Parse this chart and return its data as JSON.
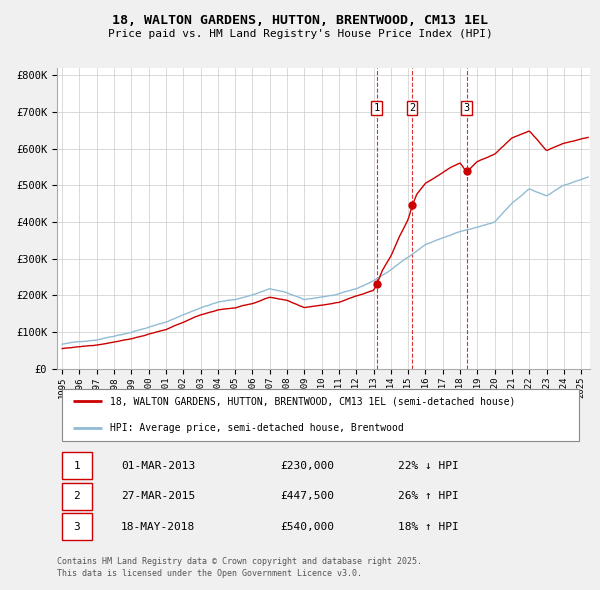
{
  "title": "18, WALTON GARDENS, HUTTON, BRENTWOOD, CM13 1EL",
  "subtitle": "Price paid vs. HM Land Registry's House Price Index (HPI)",
  "background_color": "#f0f0f0",
  "plot_bg_color": "#ffffff",
  "legend_line1": "18, WALTON GARDENS, HUTTON, BRENTWOOD, CM13 1EL (semi-detached house)",
  "legend_line2": "HPI: Average price, semi-detached house, Brentwood",
  "sale_color": "#cc0000",
  "hpi_color": "#92bcd4",
  "transactions": [
    {
      "label": "1",
      "date": "01-MAR-2013",
      "price": 230000,
      "hpi_rel": "22% ↓ HPI",
      "year": 2013.17
    },
    {
      "label": "2",
      "date": "27-MAR-2015",
      "price": 447500,
      "hpi_rel": "26% ↑ HPI",
      "year": 2015.23
    },
    {
      "label": "3",
      "date": "18-MAY-2018",
      "price": 540000,
      "hpi_rel": "18% ↑ HPI",
      "year": 2018.38
    }
  ],
  "footer_line1": "Contains HM Land Registry data © Crown copyright and database right 2025.",
  "footer_line2": "This data is licensed under the Open Government Licence v3.0.",
  "ylim": [
    0,
    820000
  ],
  "xlim_start": 1994.7,
  "xlim_end": 2025.5,
  "yticks": [
    0,
    100000,
    200000,
    300000,
    400000,
    500000,
    600000,
    700000,
    800000
  ],
  "ytick_labels": [
    "£0",
    "£100K",
    "£200K",
    "£300K",
    "£400K",
    "£500K",
    "£600K",
    "£700K",
    "£800K"
  ],
  "xticks": [
    1995,
    1996,
    1997,
    1998,
    1999,
    2000,
    2001,
    2002,
    2003,
    2004,
    2005,
    2006,
    2007,
    2008,
    2009,
    2010,
    2011,
    2012,
    2013,
    2014,
    2015,
    2016,
    2017,
    2018,
    2019,
    2020,
    2021,
    2022,
    2023,
    2024,
    2025
  ]
}
